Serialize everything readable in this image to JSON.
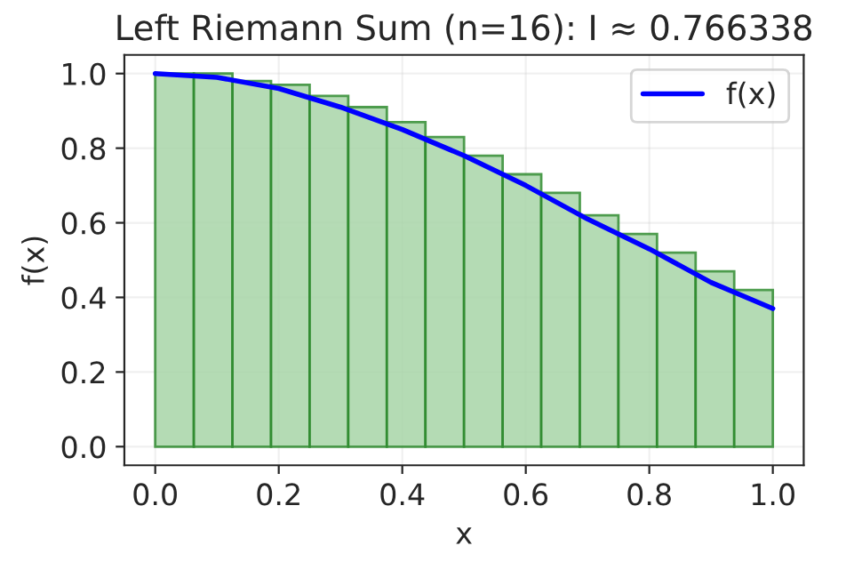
{
  "chart_data": {
    "type": "histogram",
    "title": "Left Riemann Sum (n=16): I ≈ 0.766338",
    "xlabel": "x",
    "ylabel": "f(x)",
    "bins": [
      0,
      0.0625,
      0.125,
      0.1875,
      0.25,
      0.3125,
      0.375,
      0.4375,
      0.5,
      0.5625,
      0.625,
      0.6875,
      0.75,
      0.8125,
      0.875,
      0.9375,
      1
    ],
    "values": [
      1.0,
      1.0,
      0.98,
      0.97,
      0.94,
      0.91,
      0.87,
      0.83,
      0.78,
      0.73,
      0.68,
      0.62,
      0.57,
      0.52,
      0.47,
      0.42
    ],
    "color": "#a8d5a8",
    "series": [
      {
        "type": "line",
        "name": "f(x)",
        "color": "#0000ff",
        "x": [
          0,
          0.1,
          0.2,
          0.3,
          0.4,
          0.5,
          0.6,
          0.7,
          0.8,
          0.9,
          1.0
        ],
        "values": [
          1.0,
          0.99,
          0.96,
          0.91,
          0.85,
          0.78,
          0.7,
          0.61,
          0.53,
          0.44,
          0.37
        ]
      }
    ],
    "xlim": [
      -0.05,
      1.05
    ],
    "ylim": [
      -0.05,
      1.05
    ],
    "xticks": [
      {
        "value": 0,
        "label": "0.0"
      },
      0.2,
      0.4,
      0.6,
      0.8,
      {
        "value": 1,
        "label": "1.0"
      }
    ],
    "yticks": [
      {
        "value": 0,
        "label": "0.0"
      },
      0.2,
      0.4,
      0.6,
      0.8,
      {
        "value": 1,
        "label": "1.0"
      }
    ],
    "grid": true,
    "legend": "top right"
  }
}
